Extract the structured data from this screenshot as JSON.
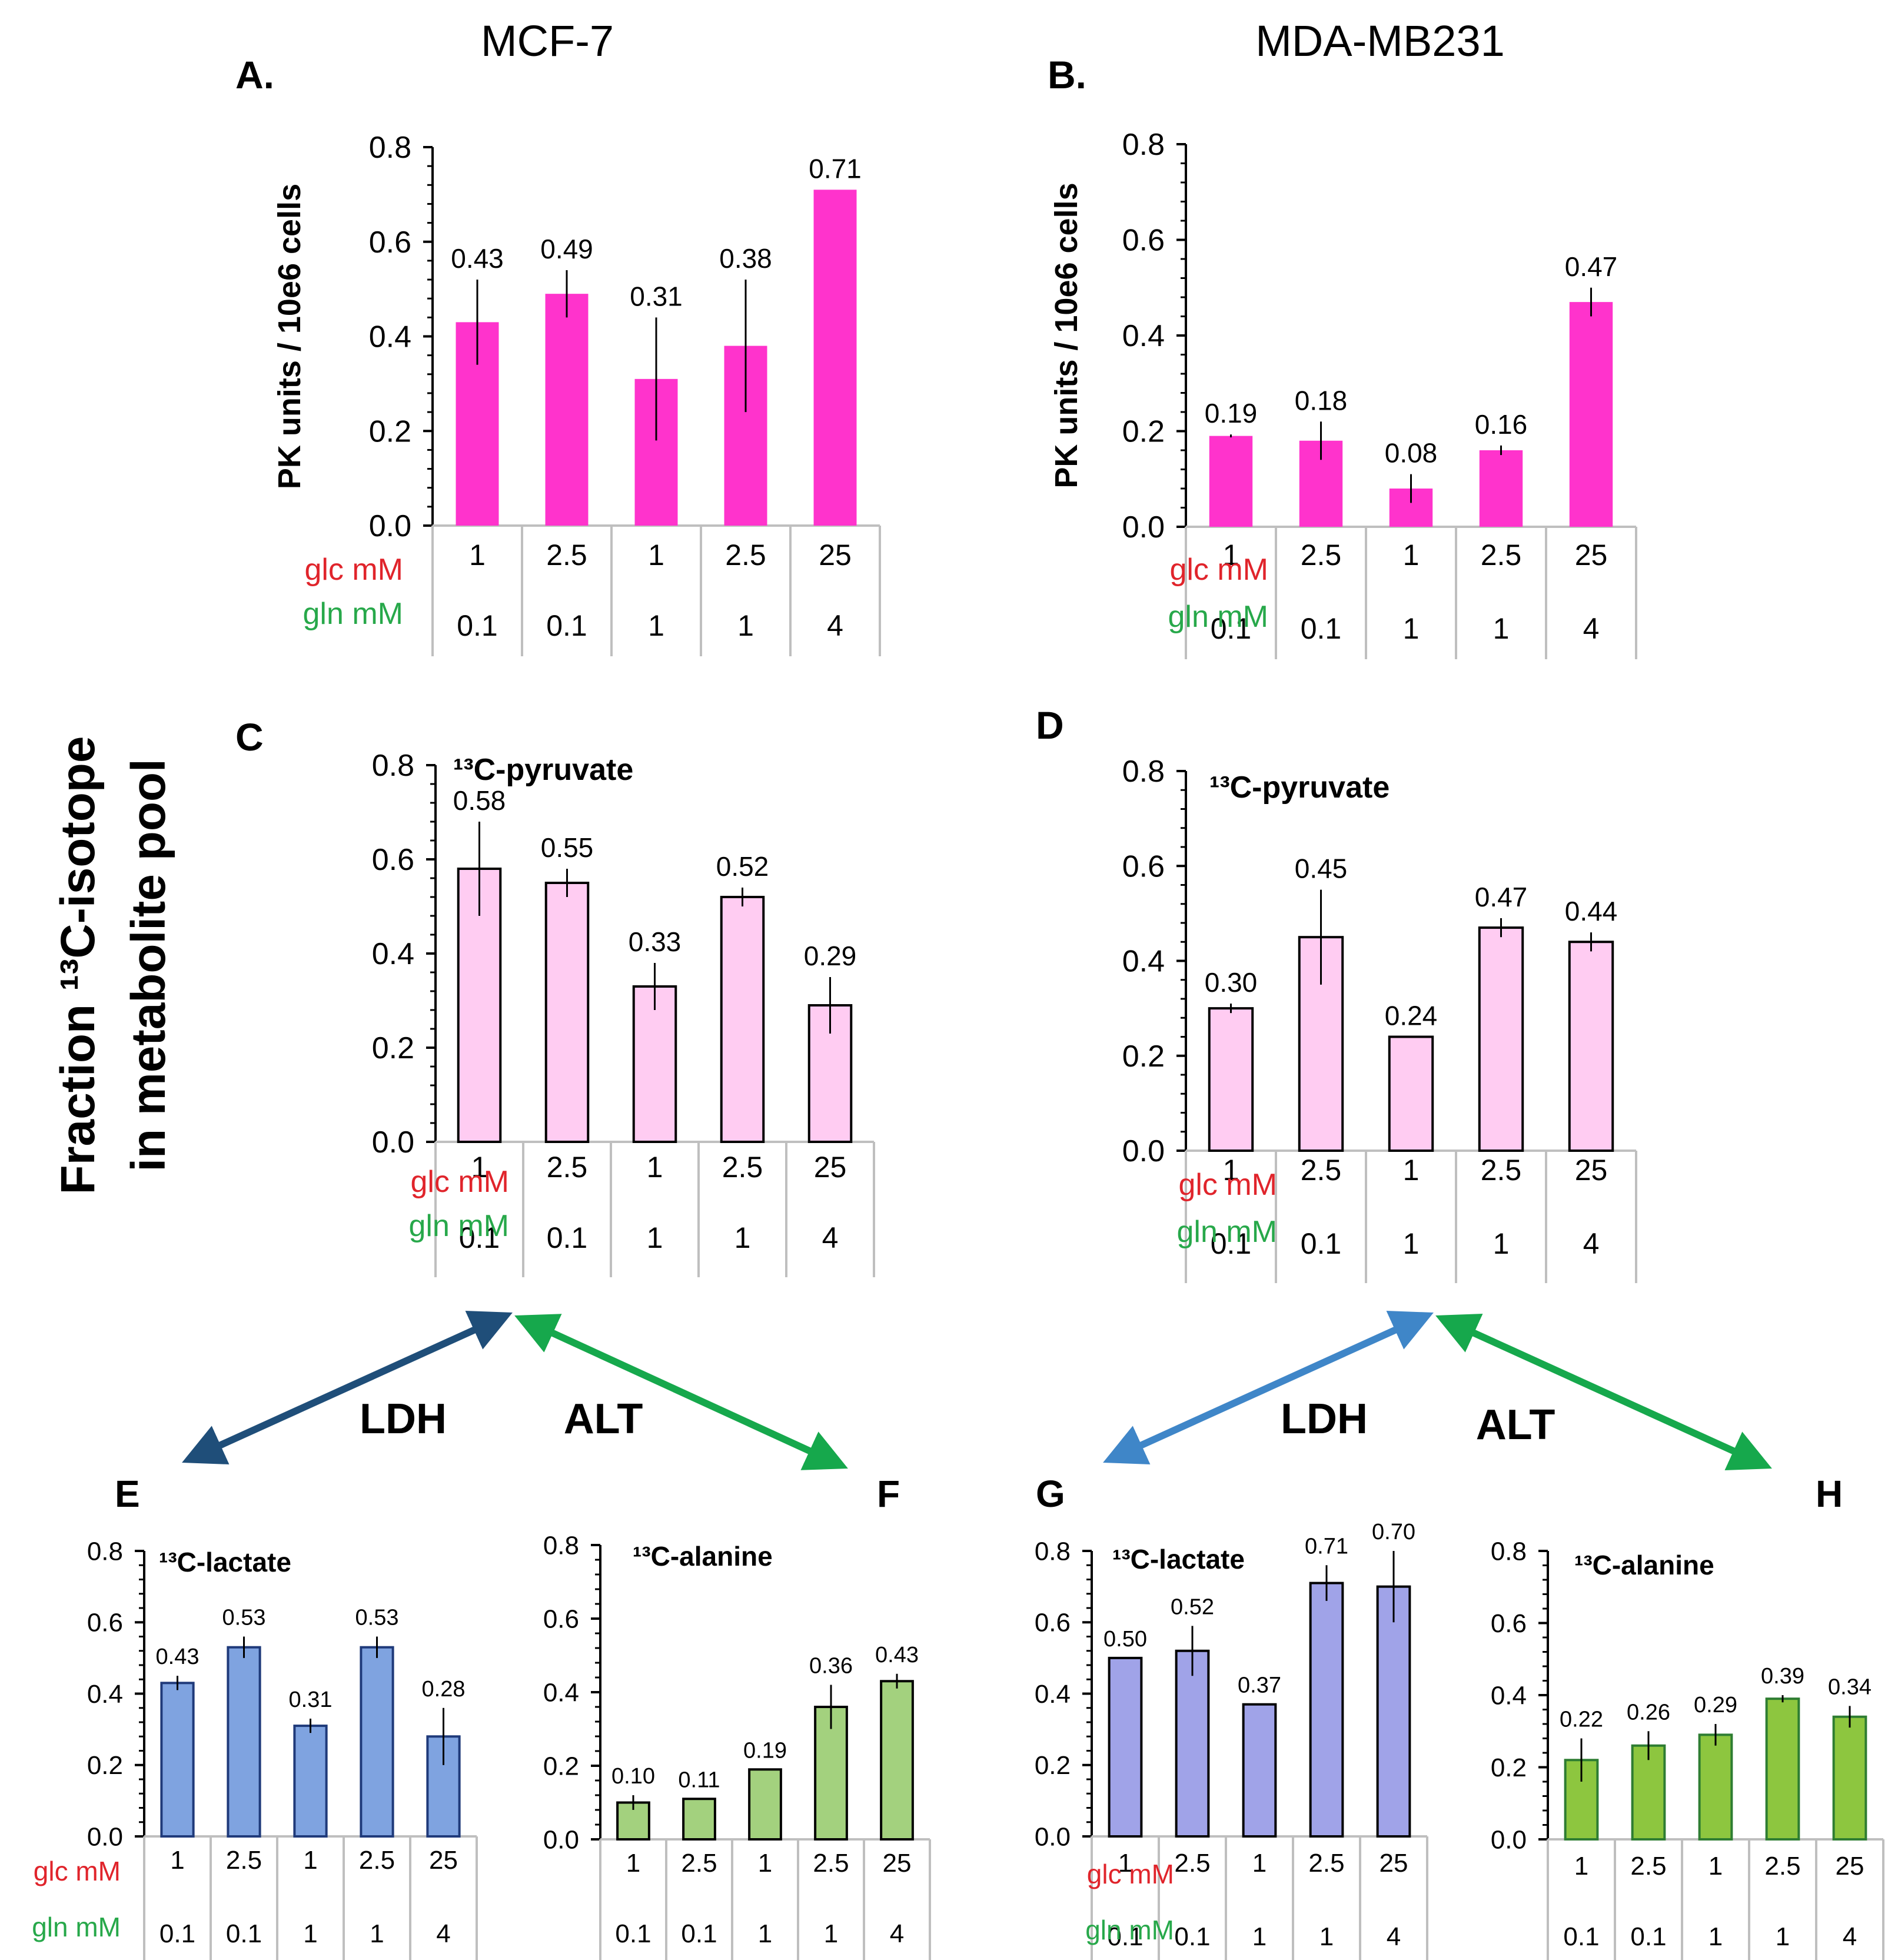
{
  "figure": {
    "col_titles": [
      "MCF-7",
      "MDA-MB231"
    ],
    "y_axis_main": "Fraction ¹³C-isotope in metabolite pool",
    "y_axis_main_line1": "Fraction ¹³C-isotope",
    "y_axis_main_line2": "in metabolite pool",
    "pk_ylabel": "PK units / 10e6 cells",
    "row_labels": {
      "glc": "glc mM",
      "gln": "gln mM"
    },
    "glc_values": [
      "1",
      "2.5",
      "1",
      "2.5",
      "25"
    ],
    "gln_values": [
      "0.1",
      "0.1",
      "1",
      "1",
      "4"
    ],
    "arrows": {
      "left": {
        "ldh": "LDH",
        "alt": "ALT"
      },
      "right": {
        "ldh": "LDH",
        "alt": "ALT"
      }
    },
    "colors": {
      "glc": "#e0242b",
      "gln": "#27a84a",
      "ldh_left": "#1f4e79",
      "ldh_right": "#3f86c8",
      "alt": "#16a84c"
    }
  },
  "chart_data": [
    {
      "panel": "A.",
      "type": "bar",
      "title": "",
      "ylabel": "PK units / 10e6 cells",
      "ylim": [
        0,
        0.8
      ],
      "yticks": [
        "0.0",
        "0.2",
        "0.4",
        "0.6",
        "0.8"
      ],
      "categories": [
        "1 / 0.1",
        "2.5 / 0.1",
        "1 / 1",
        "2.5 / 1",
        "25 / 4"
      ],
      "values": [
        0.43,
        0.49,
        0.31,
        0.38,
        0.71
      ],
      "errors": [
        0.09,
        0.05,
        0.13,
        0.14,
        0
      ],
      "labels": [
        "0.43",
        "0.49",
        "0.31",
        "0.38",
        "0.71"
      ],
      "color": "#ff33cc",
      "stroke": "none"
    },
    {
      "panel": "B.",
      "type": "bar",
      "title": "",
      "ylabel": "PK units / 10e6 cells",
      "ylim": [
        0,
        0.8
      ],
      "yticks": [
        "0.0",
        "0.2",
        "0.4",
        "0.6",
        "0.8"
      ],
      "categories": [
        "1 / 0.1",
        "2.5 / 0.1",
        "1 / 1",
        "2.5 / 1",
        "25 / 4"
      ],
      "values": [
        0.19,
        0.18,
        0.08,
        0.16,
        0.47
      ],
      "errors": [
        0.003,
        0.04,
        0.03,
        0.01,
        0.03
      ],
      "labels": [
        "0.19",
        "0.18",
        "0.08",
        "0.16",
        "0.47"
      ],
      "color": "#ff33cc",
      "stroke": "none"
    },
    {
      "panel": "C",
      "type": "bar",
      "title": "¹³C-pyruvate",
      "ylabel": "",
      "ylim": [
        0,
        0.8
      ],
      "yticks": [
        "0.0",
        "0.2",
        "0.4",
        "0.6",
        "0.8"
      ],
      "categories": [
        "1 / 0.1",
        "2.5 / 0.1",
        "1 / 1",
        "2.5 / 1",
        "25 / 4"
      ],
      "values": [
        0.58,
        0.55,
        0.33,
        0.52,
        0.29
      ],
      "errors": [
        0.1,
        0.03,
        0.05,
        0.02,
        0.06
      ],
      "labels": [
        "0.58",
        "0.55",
        "0.33",
        "0.52",
        "0.29"
      ],
      "color": "#ffccf2",
      "stroke": "#000000"
    },
    {
      "panel": "D",
      "type": "bar",
      "title": "¹³C-pyruvate",
      "ylabel": "",
      "ylim": [
        0,
        0.8
      ],
      "yticks": [
        "0.0",
        "0.2",
        "0.4",
        "0.6",
        "0.8"
      ],
      "categories": [
        "1 / 0.1",
        "2.5 / 0.1",
        "1 / 1",
        "2.5 / 1",
        "25 / 4"
      ],
      "values": [
        0.3,
        0.45,
        0.24,
        0.47,
        0.44
      ],
      "errors": [
        0.01,
        0.1,
        0,
        0.02,
        0.02
      ],
      "labels": [
        "0.30",
        "0.45",
        "0.24",
        "0.47",
        "0.44"
      ],
      "color": "#ffccf2",
      "stroke": "#000000"
    },
    {
      "panel": "E",
      "type": "bar",
      "title": "¹³C-lactate",
      "ylabel": "",
      "ylim": [
        0,
        0.8
      ],
      "yticks": [
        "0.0",
        "0.2",
        "0.4",
        "0.6",
        "0.8"
      ],
      "categories": [
        "1 / 0.1",
        "2.5 / 0.1",
        "1 / 1",
        "2.5 / 1",
        "25 / 4"
      ],
      "values": [
        0.43,
        0.53,
        0.31,
        0.53,
        0.28
      ],
      "errors": [
        0.02,
        0.03,
        0.02,
        0.03,
        0.08
      ],
      "labels": [
        "0.43",
        "0.53",
        "0.31",
        "0.53",
        "0.28"
      ],
      "color": "#7fa3e0",
      "stroke": "#1f3a7a"
    },
    {
      "panel": "F",
      "type": "bar",
      "title": "¹³C-alanine",
      "ylabel": "",
      "ylim": [
        0,
        0.8
      ],
      "yticks": [
        "0.0",
        "0.2",
        "0.4",
        "0.6",
        "0.8"
      ],
      "categories": [
        "1 / 0.1",
        "2.5 / 0.1",
        "1 / 1",
        "2.5 / 1",
        "25 / 4"
      ],
      "values": [
        0.1,
        0.11,
        0.19,
        0.36,
        0.43
      ],
      "errors": [
        0.02,
        0,
        0,
        0.06,
        0.02
      ],
      "labels": [
        "0.10",
        "0.11",
        "0.19",
        "0.36",
        "0.43"
      ],
      "color": "#a3d17e",
      "stroke": "#000000"
    },
    {
      "panel": "G",
      "type": "bar",
      "title": "¹³C-lactate",
      "ylabel": "",
      "ylim": [
        0,
        0.8
      ],
      "yticks": [
        "0.0",
        "0.2",
        "0.4",
        "0.6",
        "0.8"
      ],
      "categories": [
        "1 / 0.1",
        "2.5 / 0.1",
        "1 / 1",
        "2.5 / 1",
        "25 / 4"
      ],
      "values": [
        0.5,
        0.52,
        0.37,
        0.71,
        0.7
      ],
      "errors": [
        0,
        0.07,
        0,
        0.05,
        0.1
      ],
      "labels": [
        "0.50",
        "0.52",
        "0.37",
        "0.71",
        "0.70"
      ],
      "color": "#a0a3e8",
      "stroke": "#000000"
    },
    {
      "panel": "H",
      "type": "bar",
      "title": "¹³C-alanine",
      "ylabel": "",
      "ylim": [
        0,
        0.8
      ],
      "yticks": [
        "0.0",
        "0.2",
        "0.4",
        "0.6",
        "0.8"
      ],
      "categories": [
        "1 / 0.1",
        "2.5 / 0.1",
        "1 / 1",
        "2.5 / 1",
        "25 / 4"
      ],
      "values": [
        0.22,
        0.26,
        0.29,
        0.39,
        0.34
      ],
      "errors": [
        0.06,
        0.04,
        0.03,
        0.01,
        0.03
      ],
      "labels": [
        "0.22",
        "0.26",
        "0.29",
        "0.39",
        "0.34"
      ],
      "color": "#8dc63f",
      "stroke": "#2e7d32"
    }
  ]
}
